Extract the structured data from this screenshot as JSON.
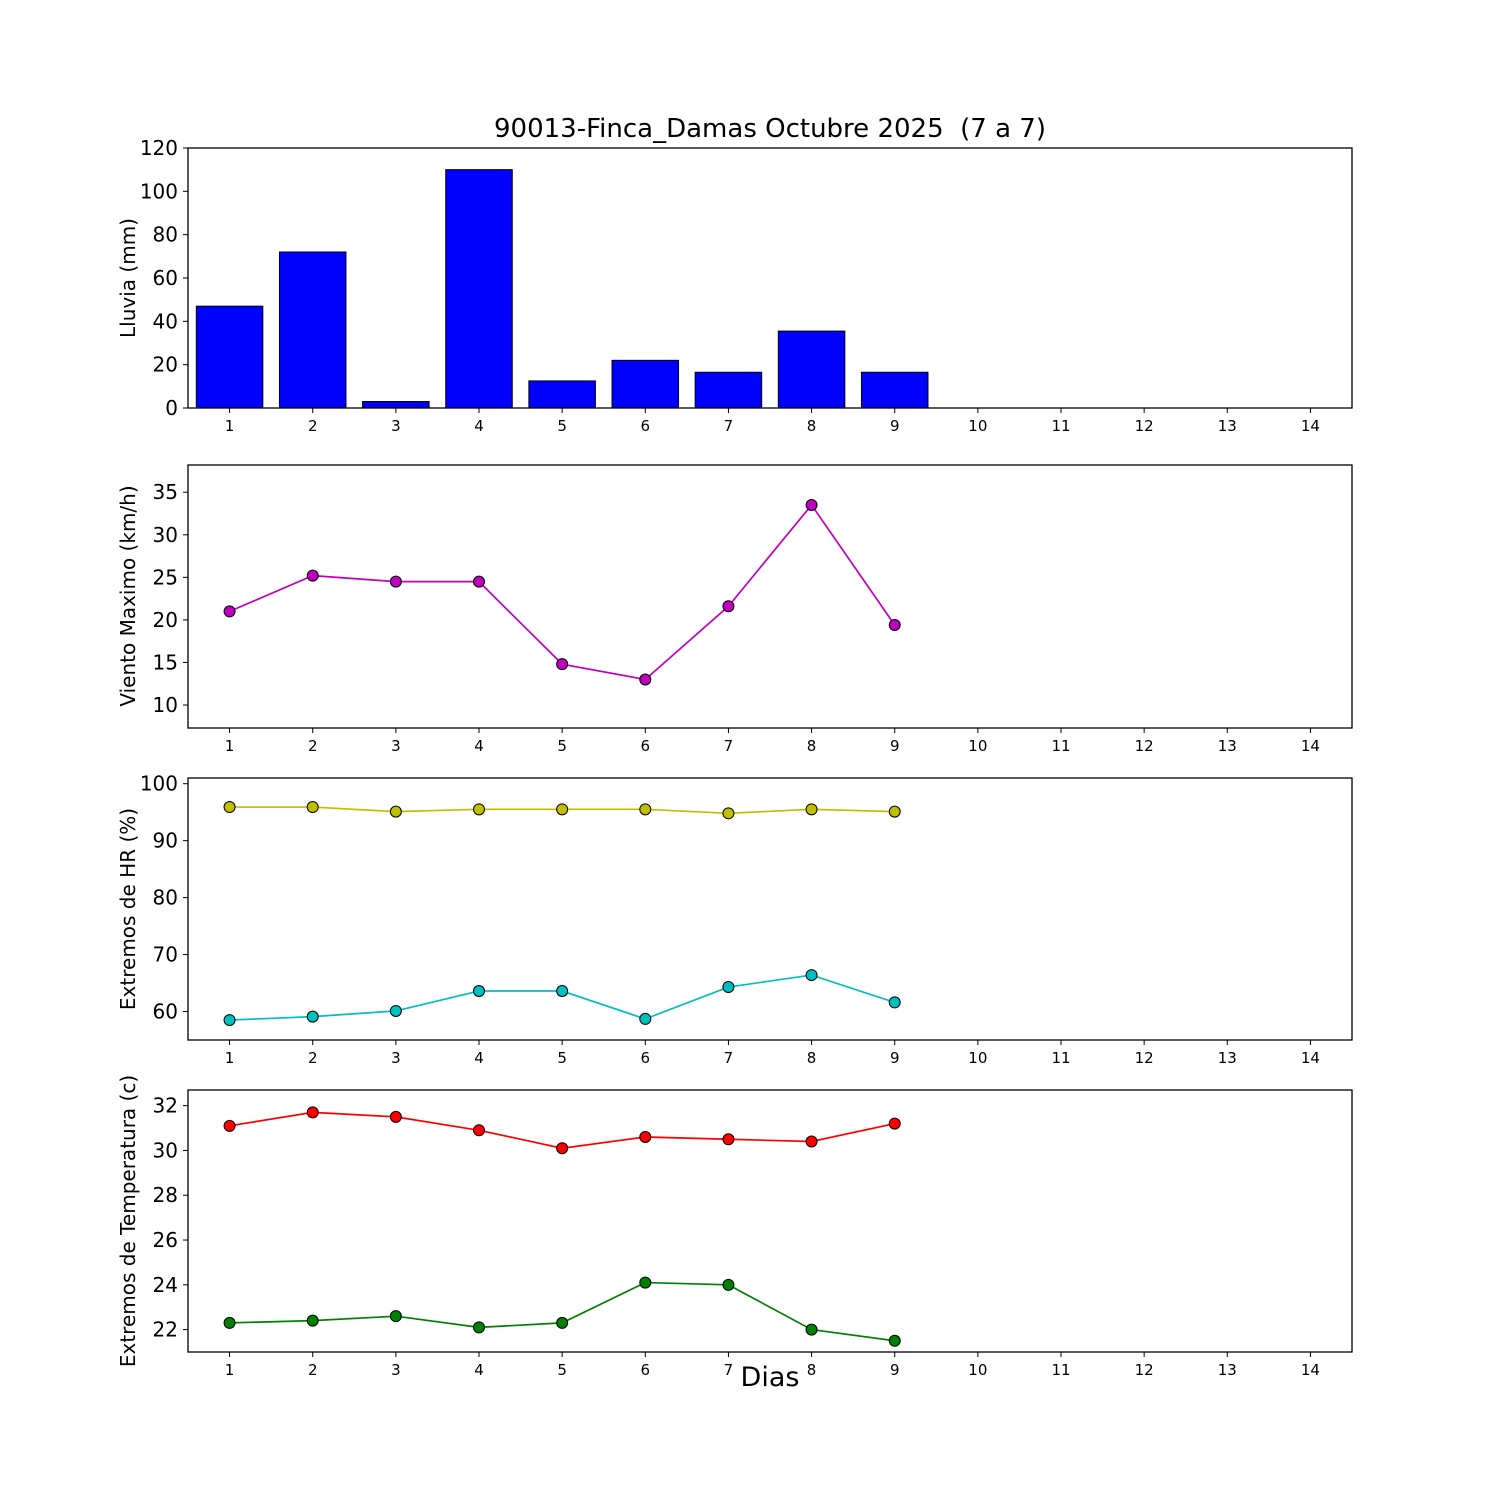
{
  "title": "90013-Finca_Damas Octubre 2025  (7 a 7)",
  "xlabel": "Dias",
  "xlim": [
    0.5,
    14.5
  ],
  "xticks": [
    1,
    2,
    3,
    4,
    5,
    6,
    7,
    8,
    9,
    10,
    11,
    12,
    13,
    14
  ],
  "colors": {
    "bar_blue": "#0000ff",
    "magenta": "#bf00bf",
    "yellow": "#bfbf00",
    "cyan": "#00bfbf",
    "red": "#ff0000",
    "green": "#008000",
    "axis": "#000000"
  },
  "chart_data": [
    {
      "type": "bar",
      "ylabel": "Lluvia (mm)",
      "categories": [
        1,
        2,
        3,
        4,
        5,
        6,
        7,
        8,
        9
      ],
      "values": [
        47,
        72,
        3,
        110,
        12.5,
        22,
        16.5,
        35.5,
        16.5
      ],
      "color": "#0000ff",
      "ylim": [
        0,
        120
      ],
      "yticks": [
        0,
        20,
        40,
        60,
        80,
        100,
        120
      ]
    },
    {
      "type": "line",
      "ylabel": "Viento Maximo (km/h)",
      "x": [
        1,
        2,
        3,
        4,
        5,
        6,
        7,
        8,
        9
      ],
      "series": [
        {
          "name": "viento-maximo",
          "color": "#bf00bf",
          "values": [
            21.0,
            25.2,
            24.5,
            24.5,
            14.8,
            13.0,
            21.6,
            33.5,
            19.4
          ]
        }
      ],
      "ylim": [
        7.3,
        38.2
      ],
      "yticks": [
        10,
        15,
        20,
        25,
        30,
        35
      ]
    },
    {
      "type": "line",
      "ylabel": "Extremos de HR (%)",
      "x": [
        1,
        2,
        3,
        4,
        5,
        6,
        7,
        8,
        9
      ],
      "series": [
        {
          "name": "hr-maxima",
          "color": "#bfbf00",
          "values": [
            95.9,
            95.9,
            95.1,
            95.5,
            95.5,
            95.5,
            94.8,
            95.5,
            95.1
          ]
        },
        {
          "name": "hr-minima",
          "color": "#00bfbf",
          "values": [
            58.5,
            59.1,
            60.1,
            63.6,
            63.6,
            58.7,
            64.3,
            66.4,
            61.6
          ]
        }
      ],
      "ylim": [
        55,
        101
      ],
      "yticks": [
        60,
        70,
        80,
        90,
        100
      ]
    },
    {
      "type": "line",
      "ylabel": "Extremos de Temperatura (c)",
      "x": [
        1,
        2,
        3,
        4,
        5,
        6,
        7,
        8,
        9
      ],
      "series": [
        {
          "name": "temp-maxima",
          "color": "#ff0000",
          "values": [
            31.1,
            31.7,
            31.5,
            30.9,
            30.1,
            30.6,
            30.5,
            30.4,
            31.2
          ]
        },
        {
          "name": "temp-minima",
          "color": "#008000",
          "values": [
            22.3,
            22.4,
            22.6,
            22.1,
            22.3,
            24.1,
            24.0,
            22.0,
            21.5
          ]
        }
      ],
      "ylim": [
        21,
        32.7
      ],
      "yticks": [
        22,
        24,
        26,
        28,
        30,
        32
      ]
    }
  ]
}
